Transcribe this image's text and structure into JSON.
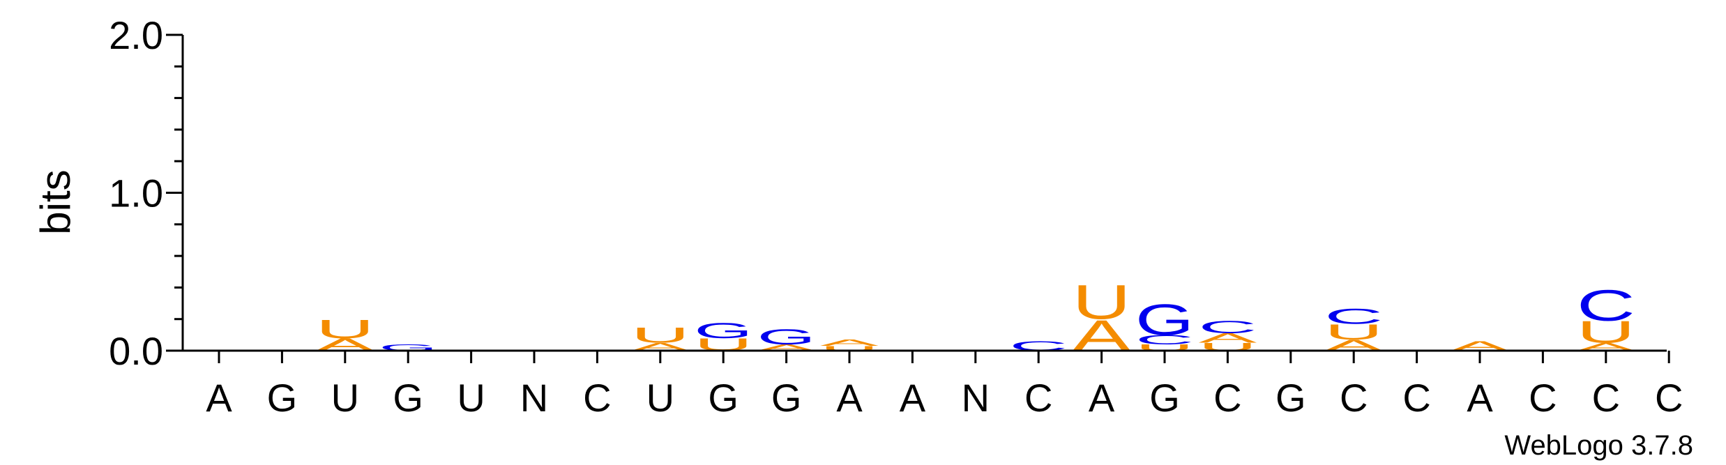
{
  "chart_data": {
    "type": "sequence-logo",
    "ylabel": "bits",
    "ylim": [
      0,
      2.0
    ],
    "yticks": [
      "0.0",
      "1.0",
      "2.0"
    ],
    "colors": {
      "A": "#f48c00",
      "U": "#f48c00",
      "G": "#0000ee",
      "C": "#0000ee"
    },
    "positions": [
      {
        "label": "A",
        "stack": []
      },
      {
        "label": "G",
        "stack": []
      },
      {
        "label": "U",
        "stack": [
          {
            "letter": "A",
            "bits": 0.08
          },
          {
            "letter": "U",
            "bits": 0.12
          }
        ]
      },
      {
        "label": "G",
        "stack": [
          {
            "letter": "G",
            "bits": 0.04
          }
        ]
      },
      {
        "label": "U",
        "stack": []
      },
      {
        "label": "N",
        "stack": []
      },
      {
        "label": "C",
        "stack": []
      },
      {
        "label": "U",
        "stack": [
          {
            "letter": "A",
            "bits": 0.05
          },
          {
            "letter": "U",
            "bits": 0.1
          }
        ]
      },
      {
        "label": "G",
        "stack": [
          {
            "letter": "U",
            "bits": 0.08
          },
          {
            "letter": "G",
            "bits": 0.1
          }
        ]
      },
      {
        "label": "G",
        "stack": [
          {
            "letter": "A",
            "bits": 0.04
          },
          {
            "letter": "G",
            "bits": 0.1
          }
        ]
      },
      {
        "label": "A",
        "stack": [
          {
            "letter": "U",
            "bits": 0.03
          },
          {
            "letter": "A",
            "bits": 0.04
          }
        ]
      },
      {
        "label": "A",
        "stack": []
      },
      {
        "label": "N",
        "stack": []
      },
      {
        "label": "C",
        "stack": [
          {
            "letter": "C",
            "bits": 0.06
          }
        ]
      },
      {
        "label": "A",
        "stack": [
          {
            "letter": "A",
            "bits": 0.2
          },
          {
            "letter": "U",
            "bits": 0.22
          }
        ]
      },
      {
        "label": "G",
        "stack": [
          {
            "letter": "U",
            "bits": 0.04
          },
          {
            "letter": "C",
            "bits": 0.06
          },
          {
            "letter": "G",
            "bits": 0.2
          }
        ]
      },
      {
        "label": "C",
        "stack": [
          {
            "letter": "U",
            "bits": 0.05
          },
          {
            "letter": "A",
            "bits": 0.06
          },
          {
            "letter": "C",
            "bits": 0.08
          }
        ]
      },
      {
        "label": "G",
        "stack": []
      },
      {
        "label": "C",
        "stack": [
          {
            "letter": "A",
            "bits": 0.07
          },
          {
            "letter": "U",
            "bits": 0.1
          },
          {
            "letter": "C",
            "bits": 0.1
          }
        ]
      },
      {
        "label": "C",
        "stack": []
      },
      {
        "label": "A",
        "stack": [
          {
            "letter": "A",
            "bits": 0.06
          }
        ]
      },
      {
        "label": "C",
        "stack": []
      },
      {
        "label": "C",
        "stack": [
          {
            "letter": "A",
            "bits": 0.05
          },
          {
            "letter": "U",
            "bits": 0.14
          },
          {
            "letter": "C",
            "bits": 0.2
          }
        ]
      },
      {
        "label": "C",
        "stack": []
      }
    ]
  },
  "footer": {
    "credit": "WebLogo 3.7.8"
  }
}
